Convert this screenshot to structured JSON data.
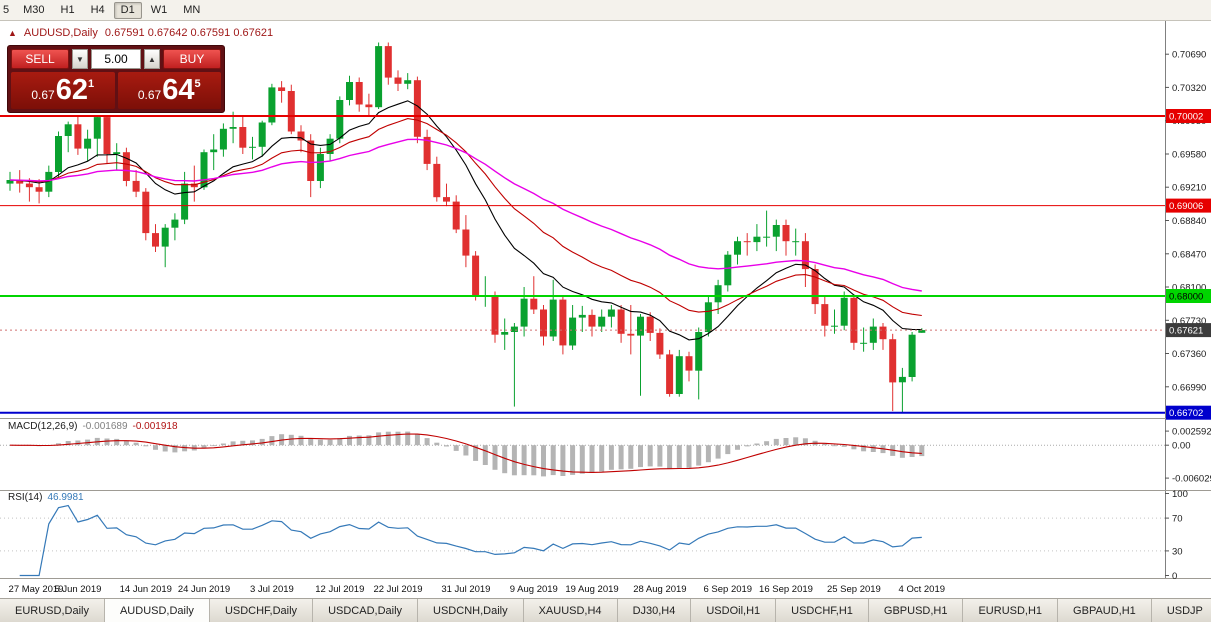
{
  "toolbar": {
    "timeframes": [
      "5",
      "M30",
      "H1",
      "H4",
      "D1",
      "W1",
      "MN"
    ],
    "active_timeframe": "D1"
  },
  "chart_header": {
    "toggle_icon": "one-click-panel-toggle",
    "symbol": "AUDUSD,Daily",
    "ohlc": "0.67591 0.67642 0.67591 0.67621"
  },
  "trade_panel": {
    "sell_label": "SELL",
    "buy_label": "BUY",
    "volume": "5.00",
    "spin_down": "▼",
    "spin_up": "▲",
    "bid": {
      "prefix": "0.67",
      "big": "62",
      "sup": "1"
    },
    "ask": {
      "prefix": "0.67",
      "big": "64",
      "sup": "5"
    }
  },
  "indicators": {
    "macd_label": "MACD(12,26,9)",
    "macd_value_main": "-0.001689",
    "macd_value_signal": "-0.001918",
    "rsi_label": "RSI(14)",
    "rsi_value": "46.9981"
  },
  "tabs": [
    "EURUSD,Daily",
    "AUDUSD,Daily",
    "USDCHF,Daily",
    "USDCAD,Daily",
    "USDCNH,Daily",
    "XAUUSD,H4",
    "DJ30,H4",
    "USDOil,H1",
    "USDCHF,H1",
    "GBPUSD,H1",
    "EURUSD,H1",
    "GBPAUD,H1",
    "USDJP"
  ],
  "active_tab_index": 1,
  "chart_data": {
    "type": "candlestick",
    "title": "AUDUSD,Daily",
    "start_date": "27 May 2019",
    "end_date": "4 Oct 2019",
    "ylim": [
      0.66643,
      0.71059
    ],
    "colors": {
      "up": "#0aa12f",
      "down": "#e03030"
    },
    "current_price": 0.67621,
    "levels": [
      {
        "price": 0.70002,
        "color": "#e60000",
        "width": 2
      },
      {
        "price": 0.69006,
        "color": "#e60000",
        "width": 1
      },
      {
        "price": 0.68,
        "color": "#00d500",
        "width": 2
      },
      {
        "price": 0.66702,
        "color": "#0000cd",
        "width": 2
      }
    ],
    "price_axis_ticks": [
      "0.70690",
      "0.70320",
      "0.69950",
      "0.69580",
      "0.69210",
      "0.68840",
      "0.68470",
      "0.68100",
      "0.67730",
      "0.67360",
      "0.66990"
    ],
    "badges": [
      {
        "label": "0.70002",
        "price": 0.70002,
        "bg": "#e60000",
        "fg": "#ffffff"
      },
      {
        "label": "0.69006",
        "price": 0.69006,
        "bg": "#e60000",
        "fg": "#ffffff"
      },
      {
        "label": "0.68000",
        "price": 0.68,
        "bg": "#00d500",
        "fg": "#000000"
      },
      {
        "label": "0.67621",
        "price": 0.67621,
        "bg": "#3c3c3c",
        "fg": "#ffffff"
      },
      {
        "label": "0.66702",
        "price": 0.66702,
        "bg": "#0000cd",
        "fg": "#ffffff"
      }
    ],
    "moving_averages": [
      {
        "name": "ma-fast-black",
        "period": 13,
        "color": "#000000",
        "width": 1.1
      },
      {
        "name": "ma-mid-red",
        "period": 24,
        "color": "#c00000",
        "width": 1.1
      },
      {
        "name": "ma-slow-magenta",
        "period": 48,
        "color": "#e800e8",
        "width": 1.4
      }
    ],
    "macd": {
      "fast": 12,
      "slow": 26,
      "signal": 9,
      "ylim": [
        -0.0082,
        0.0048
      ],
      "histogram_color": "#b4b4b4",
      "signal_color": "#c00000",
      "ticks": [
        "0.002592",
        "0.00",
        "-0.006029"
      ]
    },
    "rsi": {
      "period": 14,
      "ylim": [
        -3,
        103
      ],
      "levels": [
        70,
        30
      ],
      "color": "#3579b8",
      "ticks": [
        "100",
        "70",
        "30",
        "0"
      ]
    },
    "x_labels": [
      {
        "label": "27 May 2019",
        "i": 0
      },
      {
        "label": "5 Jun 2019",
        "i": 7
      },
      {
        "label": "14 Jun 2019",
        "i": 14
      },
      {
        "label": "24 Jun 2019",
        "i": 20
      },
      {
        "label": "3 Jul 2019",
        "i": 27
      },
      {
        "label": "12 Jul 2019",
        "i": 34
      },
      {
        "label": "22 Jul 2019",
        "i": 40
      },
      {
        "label": "31 Jul 2019",
        "i": 47
      },
      {
        "label": "9 Aug 2019",
        "i": 54
      },
      {
        "label": "19 Aug 2019",
        "i": 60
      },
      {
        "label": "28 Aug 2019",
        "i": 67
      },
      {
        "label": "6 Sep 2019",
        "i": 74
      },
      {
        "label": "16 Sep 2019",
        "i": 80
      },
      {
        "label": "25 Sep 2019",
        "i": 87
      },
      {
        "label": "4 Oct 2019",
        "i": 94
      }
    ],
    "ohlc": [
      [
        0.6925,
        0.6938,
        0.6917,
        0.6929
      ],
      [
        0.6929,
        0.694,
        0.6915,
        0.6925
      ],
      [
        0.6925,
        0.6931,
        0.6905,
        0.6921
      ],
      [
        0.6921,
        0.693,
        0.6903,
        0.6916
      ],
      [
        0.6916,
        0.6945,
        0.691,
        0.6938
      ],
      [
        0.6938,
        0.6983,
        0.6932,
        0.6978
      ],
      [
        0.6978,
        0.6994,
        0.696,
        0.6991
      ],
      [
        0.6991,
        0.7,
        0.6957,
        0.6964
      ],
      [
        0.6964,
        0.6985,
        0.695,
        0.6975
      ],
      [
        0.6975,
        0.7,
        0.6955,
        0.6999
      ],
      [
        0.6999,
        0.7,
        0.6948,
        0.6958
      ],
      [
        0.6958,
        0.697,
        0.694,
        0.696
      ],
      [
        0.696,
        0.6965,
        0.6922,
        0.6928
      ],
      [
        0.6928,
        0.694,
        0.691,
        0.6916
      ],
      [
        0.6916,
        0.692,
        0.6862,
        0.687
      ],
      [
        0.687,
        0.688,
        0.6849,
        0.6855
      ],
      [
        0.6855,
        0.688,
        0.6832,
        0.6876
      ],
      [
        0.6876,
        0.6892,
        0.6862,
        0.6885
      ],
      [
        0.6885,
        0.6938,
        0.688,
        0.6925
      ],
      [
        0.6925,
        0.6945,
        0.6905,
        0.6921
      ],
      [
        0.6921,
        0.6963,
        0.6918,
        0.696
      ],
      [
        0.696,
        0.698,
        0.694,
        0.6963
      ],
      [
        0.6963,
        0.6992,
        0.6955,
        0.6986
      ],
      [
        0.6986,
        0.7005,
        0.697,
        0.6988
      ],
      [
        0.6988,
        0.7,
        0.6958,
        0.6965
      ],
      [
        0.6965,
        0.6977,
        0.6952,
        0.6966
      ],
      [
        0.6966,
        0.6995,
        0.6955,
        0.6993
      ],
      [
        0.6993,
        0.7036,
        0.699,
        0.7032
      ],
      [
        0.7032,
        0.7039,
        0.7015,
        0.7028
      ],
      [
        0.7028,
        0.7035,
        0.698,
        0.6983
      ],
      [
        0.6983,
        0.699,
        0.696,
        0.6973
      ],
      [
        0.6973,
        0.698,
        0.691,
        0.6928
      ],
      [
        0.6928,
        0.6965,
        0.692,
        0.6958
      ],
      [
        0.6958,
        0.698,
        0.695,
        0.6975
      ],
      [
        0.6975,
        0.7022,
        0.697,
        0.7018
      ],
      [
        0.7018,
        0.7045,
        0.7012,
        0.7038
      ],
      [
        0.7038,
        0.7043,
        0.7005,
        0.7013
      ],
      [
        0.7013,
        0.7025,
        0.7,
        0.701
      ],
      [
        0.701,
        0.7082,
        0.7008,
        0.7078
      ],
      [
        0.7078,
        0.7082,
        0.7035,
        0.7043
      ],
      [
        0.7043,
        0.7051,
        0.7028,
        0.7036
      ],
      [
        0.7036,
        0.7048,
        0.703,
        0.704
      ],
      [
        0.704,
        0.7044,
        0.697,
        0.6977
      ],
      [
        0.6977,
        0.6985,
        0.694,
        0.6947
      ],
      [
        0.6947,
        0.6955,
        0.6905,
        0.691
      ],
      [
        0.691,
        0.6925,
        0.69,
        0.6905
      ],
      [
        0.6905,
        0.6912,
        0.687,
        0.6874
      ],
      [
        0.6874,
        0.689,
        0.6832,
        0.6845
      ],
      [
        0.6845,
        0.685,
        0.6795,
        0.68
      ],
      [
        0.68,
        0.6822,
        0.6788,
        0.68
      ],
      [
        0.68,
        0.6805,
        0.6748,
        0.6757
      ],
      [
        0.6757,
        0.6775,
        0.674,
        0.676
      ],
      [
        0.676,
        0.677,
        0.6677,
        0.6766
      ],
      [
        0.6766,
        0.681,
        0.6755,
        0.6797
      ],
      [
        0.6797,
        0.6822,
        0.678,
        0.6785
      ],
      [
        0.6785,
        0.679,
        0.6745,
        0.6755
      ],
      [
        0.6755,
        0.6818,
        0.675,
        0.6796
      ],
      [
        0.6796,
        0.68,
        0.6735,
        0.6745
      ],
      [
        0.6745,
        0.679,
        0.674,
        0.6776
      ],
      [
        0.6776,
        0.6789,
        0.676,
        0.6779
      ],
      [
        0.6779,
        0.6785,
        0.6755,
        0.6766
      ],
      [
        0.6766,
        0.6785,
        0.676,
        0.6777
      ],
      [
        0.6777,
        0.679,
        0.6765,
        0.6785
      ],
      [
        0.6785,
        0.679,
        0.6748,
        0.6758
      ],
      [
        0.6758,
        0.679,
        0.6735,
        0.6756
      ],
      [
        0.6756,
        0.678,
        0.6689,
        0.6777
      ],
      [
        0.6777,
        0.6782,
        0.675,
        0.6759
      ],
      [
        0.6759,
        0.6764,
        0.673,
        0.6735
      ],
      [
        0.6735,
        0.674,
        0.6688,
        0.6691
      ],
      [
        0.6691,
        0.674,
        0.6688,
        0.6733
      ],
      [
        0.6733,
        0.6738,
        0.6705,
        0.6717
      ],
      [
        0.6717,
        0.6765,
        0.6685,
        0.676
      ],
      [
        0.676,
        0.68,
        0.6755,
        0.6793
      ],
      [
        0.6793,
        0.6818,
        0.678,
        0.6812
      ],
      [
        0.6812,
        0.685,
        0.6805,
        0.6846
      ],
      [
        0.6846,
        0.6866,
        0.6835,
        0.6861
      ],
      [
        0.6861,
        0.687,
        0.6845,
        0.686
      ],
      [
        0.686,
        0.688,
        0.685,
        0.6866
      ],
      [
        0.6866,
        0.6895,
        0.6855,
        0.6866
      ],
      [
        0.6866,
        0.6885,
        0.685,
        0.6879
      ],
      [
        0.6879,
        0.6885,
        0.6845,
        0.6861
      ],
      [
        0.6861,
        0.6875,
        0.6845,
        0.6861
      ],
      [
        0.6861,
        0.687,
        0.681,
        0.683
      ],
      [
        0.683,
        0.6835,
        0.678,
        0.6791
      ],
      [
        0.6791,
        0.68,
        0.6755,
        0.6767
      ],
      [
        0.6767,
        0.6785,
        0.6758,
        0.6767
      ],
      [
        0.6767,
        0.6805,
        0.6762,
        0.6798
      ],
      [
        0.6798,
        0.68,
        0.674,
        0.6748
      ],
      [
        0.6748,
        0.6765,
        0.6738,
        0.6748
      ],
      [
        0.6748,
        0.6775,
        0.674,
        0.6766
      ],
      [
        0.6766,
        0.677,
        0.674,
        0.6752
      ],
      [
        0.6752,
        0.6758,
        0.6672,
        0.6704
      ],
      [
        0.6704,
        0.672,
        0.667,
        0.671
      ],
      [
        0.671,
        0.676,
        0.6705,
        0.6757
      ],
      [
        0.67591,
        0.67642,
        0.67591,
        0.67621
      ]
    ]
  }
}
